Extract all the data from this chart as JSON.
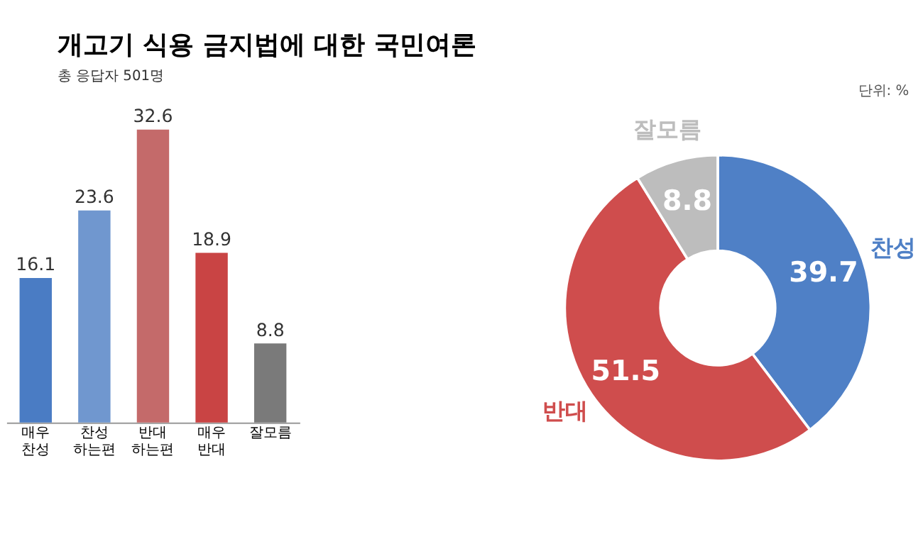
{
  "chart_data": [
    {
      "type": "bar",
      "title": "개고기 식용 금지법에 대한 국민여론",
      "subtitle": "총 응답자 501명",
      "categories": [
        "매우\n찬성",
        "찬성\n하는편",
        "반대\n하는편",
        "매우\n반대",
        "잘모름"
      ],
      "values": [
        16.1,
        23.6,
        32.6,
        18.9,
        8.8
      ],
      "colors": [
        "#4a7cc4",
        "#7097cf",
        "#c46a6a",
        "#c94444",
        "#7a7a7a"
      ],
      "data_labels": true,
      "tick_labels": "x",
      "grid": false
    },
    {
      "type": "donut",
      "categories": [
        "찬성",
        "반대",
        "잘모름"
      ],
      "values": [
        39.7,
        51.5,
        8.8
      ],
      "colors": [
        "#4f80c6",
        "#cf4d4d",
        "#bdbdbd"
      ],
      "data_labels": true,
      "legend": false,
      "annotations": [
        "단위: %"
      ]
    }
  ]
}
